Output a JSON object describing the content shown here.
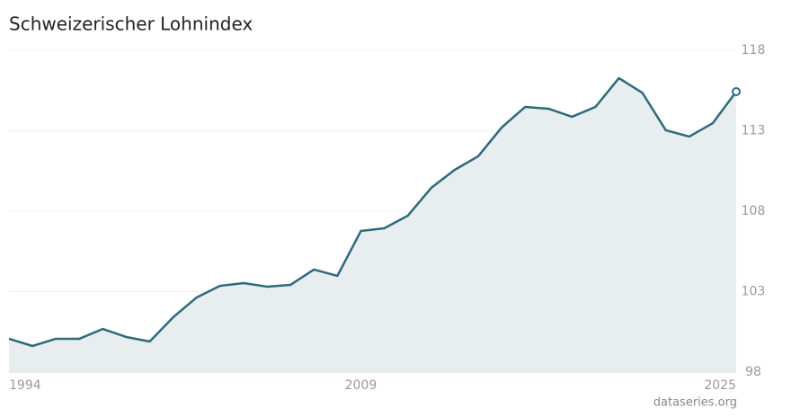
{
  "chart_data": {
    "type": "area",
    "title": "Schweizerischer Lohnindex",
    "source": "dataseries.org",
    "x": [
      1994,
      1995,
      1996,
      1997,
      1998,
      1999,
      2000,
      2001,
      2002,
      2003,
      2004,
      2005,
      2006,
      2007,
      2008,
      2009,
      2010,
      2011,
      2012,
      2013,
      2014,
      2015,
      2016,
      2017,
      2018,
      2019,
      2020,
      2021,
      2022,
      2023,
      2024,
      2025
    ],
    "values": [
      100.07,
      99.62,
      100.07,
      100.07,
      100.68,
      100.18,
      99.9,
      101.41,
      102.64,
      103.36,
      103.53,
      103.31,
      103.42,
      104.37,
      103.98,
      106.77,
      106.94,
      107.72,
      109.45,
      110.57,
      111.41,
      113.2,
      114.48,
      114.37,
      113.87,
      114.48,
      116.27,
      115.36,
      113.03,
      112.64,
      113.47,
      115.43
    ],
    "color": "#2e6a78",
    "fill": "#e8eef0",
    "xlim": [
      1994,
      2025
    ],
    "xticks": [
      1994,
      2009,
      2025
    ],
    "ylim": [
      98,
      118
    ],
    "yticks": [
      98,
      103,
      108,
      113,
      118
    ],
    "grid": true
  }
}
